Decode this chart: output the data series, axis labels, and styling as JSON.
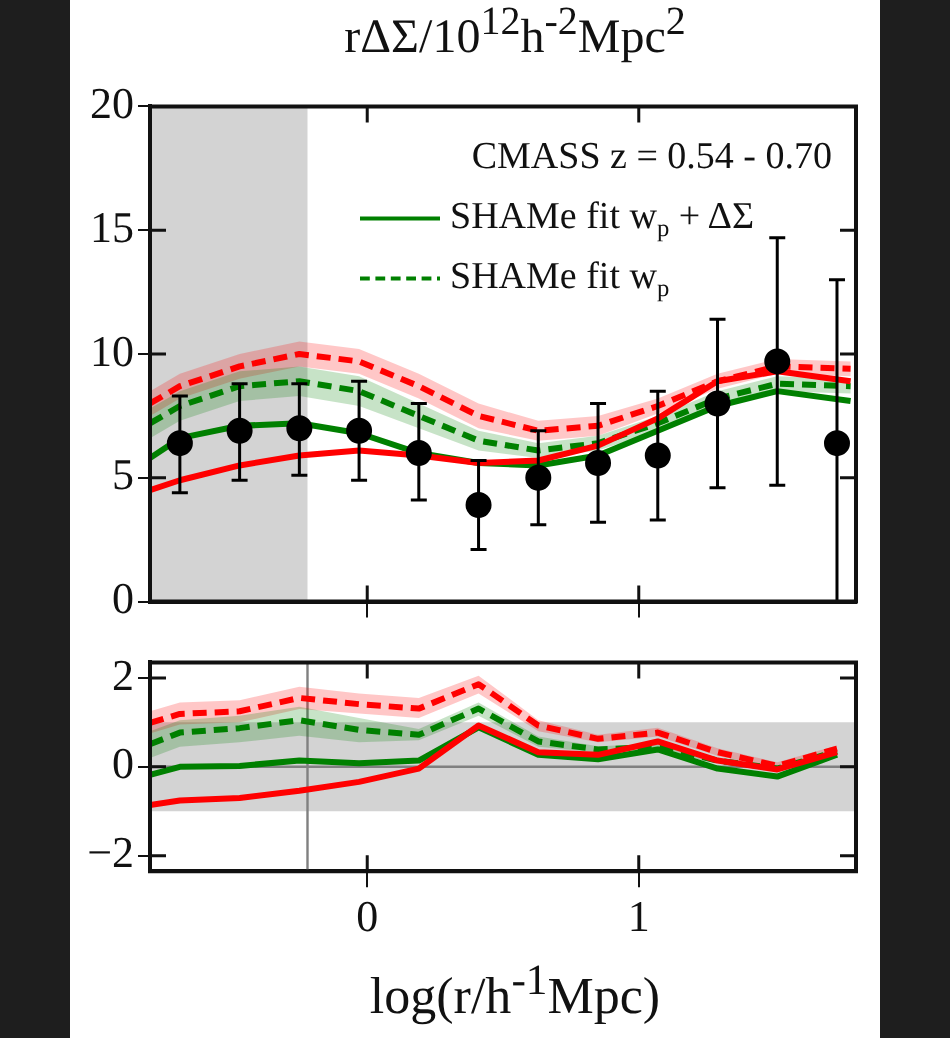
{
  "chart_data": [
    {
      "type": "line",
      "title": "rΔΣ/10$^{12}$h$^{-2}$Mpc$^{2}$",
      "legend_title": "CMASS z = 0.54 - 0.70",
      "legend": "top right",
      "tick_labels": "y",
      "x": [
        -0.8,
        -0.69,
        -0.47,
        -0.25,
        -0.03,
        0.19,
        0.41,
        0.63,
        0.85,
        1.07,
        1.29,
        1.51,
        1.78
      ],
      "xlim": [
        -0.8,
        1.8
      ],
      "xticks": [
        {
          "value": 0,
          "label": null
        },
        {
          "value": 1,
          "label": null
        }
      ],
      "ylim": [
        0,
        20
      ],
      "yticks": [
        0,
        5,
        10,
        15,
        20
      ],
      "bands": [
        {
          "axis": "x",
          "from": -0.8,
          "to": -0.22,
          "color": "#d3d3d3"
        }
      ],
      "series": [
        {
          "color": "#ff0000",
          "line_style": "solid",
          "values": [
            4.5,
            4.9,
            5.5,
            5.9,
            6.1,
            5.9,
            5.6,
            5.7,
            6.3,
            7.4,
            8.9,
            9.3,
            8.9
          ]
        },
        {
          "name": "SHAMe fit w$_{p}$ + ΔΣ",
          "color": "#008000",
          "line_style": "solid",
          "values": [
            5.8,
            6.6,
            7.1,
            7.2,
            6.8,
            6.0,
            5.6,
            5.5,
            5.9,
            6.9,
            7.9,
            8.5,
            8.1
          ]
        },
        {
          "color": "#ff0000",
          "line_style": "dashed",
          "values": [
            8.0,
            8.7,
            9.5,
            10.0,
            9.7,
            8.7,
            7.5,
            6.9,
            7.1,
            7.9,
            8.9,
            9.5,
            9.4
          ],
          "lower": [
            7.5,
            8.2,
            9.0,
            9.5,
            9.2,
            8.2,
            7.0,
            6.5,
            6.7,
            7.6,
            8.6,
            9.2,
            9.1
          ],
          "upper": [
            8.5,
            9.2,
            10.0,
            10.5,
            10.2,
            9.2,
            8.0,
            7.3,
            7.5,
            8.2,
            9.2,
            9.8,
            9.7
          ]
        },
        {
          "name": "SHAMe fit w$_{p}$",
          "color": "#008000",
          "line_style": "dashed",
          "values": [
            7.2,
            7.9,
            8.7,
            8.9,
            8.5,
            7.5,
            6.5,
            6.1,
            6.4,
            7.2,
            8.2,
            8.8,
            8.7
          ],
          "lower": [
            6.6,
            7.3,
            8.1,
            8.3,
            7.9,
            7.0,
            6.1,
            5.8,
            6.1,
            6.9,
            7.9,
            8.5,
            8.4
          ],
          "upper": [
            7.8,
            8.5,
            9.3,
            9.5,
            9.1,
            8.0,
            6.9,
            6.4,
            6.7,
            7.5,
            8.5,
            9.1,
            9.0
          ]
        },
        {
          "type": "scatter",
          "marker": "circle",
          "color": "#000000",
          "x": [
            -0.69,
            -0.47,
            -0.25,
            -0.03,
            0.19,
            0.41,
            0.63,
            0.85,
            1.07,
            1.29,
            1.51,
            1.73
          ],
          "values": [
            6.4,
            6.9,
            7.0,
            6.9,
            6.0,
            3.9,
            5.0,
            5.6,
            5.9,
            8.0,
            9.7,
            6.4
          ],
          "errors": [
            [
              4.4,
              8.3
            ],
            [
              4.9,
              8.8
            ],
            [
              5.1,
              8.8
            ],
            [
              4.9,
              8.9
            ],
            [
              4.1,
              8.0
            ],
            [
              2.1,
              5.7
            ],
            [
              3.1,
              6.9
            ],
            [
              3.2,
              8.0
            ],
            [
              3.3,
              8.5
            ],
            [
              4.6,
              11.4
            ],
            [
              4.7,
              14.7
            ],
            [
              0,
              13.0
            ]
          ]
        }
      ]
    },
    {
      "type": "line",
      "xlabel": "log(r/h$^{-1}$Mpc)",
      "x": [
        -0.8,
        -0.69,
        -0.47,
        -0.25,
        -0.03,
        0.19,
        0.41,
        0.63,
        0.85,
        1.07,
        1.29,
        1.51,
        1.73
      ],
      "xlim": [
        -0.8,
        1.8
      ],
      "xticks": [
        0,
        1
      ],
      "ylim": [
        -2.35,
        2.35
      ],
      "yticks": [
        {
          "value": -2,
          "label": "−2"
        },
        0,
        2
      ],
      "bands": [
        {
          "axis": "y",
          "from": -1,
          "to": 1,
          "color": "#d3d3d3"
        }
      ],
      "ref_lines": [
        {
          "axis": "y",
          "value": 0,
          "color": "#808080"
        },
        {
          "axis": "x",
          "value": -0.22,
          "color": "#808080"
        }
      ],
      "series": [
        {
          "color": "#ff0000",
          "line_style": "solid",
          "values": [
            -0.86,
            -0.76,
            -0.7,
            -0.54,
            -0.34,
            -0.04,
            0.93,
            0.33,
            0.27,
            0.57,
            0.14,
            -0.06,
            0.33
          ]
        },
        {
          "color": "#008000",
          "line_style": "solid",
          "values": [
            -0.18,
            0,
            0.02,
            0.14,
            0.08,
            0.14,
            0.89,
            0.27,
            0.17,
            0.39,
            -0.04,
            -0.22,
            0.27
          ]
        },
        {
          "color": "#ff0000",
          "line_style": "dashed",
          "values": [
            0.99,
            1.19,
            1.25,
            1.55,
            1.41,
            1.31,
            1.86,
            0.93,
            0.63,
            0.77,
            0.33,
            0.02,
            0.41
          ],
          "lower": [
            0.75,
            0.95,
            1.0,
            1.3,
            1.2,
            1.1,
            1.65,
            0.8,
            0.55,
            0.68,
            0.25,
            -0.04,
            0.34
          ],
          "upper": [
            1.25,
            1.45,
            1.5,
            1.8,
            1.65,
            1.55,
            2.05,
            1.05,
            0.72,
            0.88,
            0.42,
            0.1,
            0.48
          ]
        },
        {
          "color": "#008000",
          "line_style": "dashed",
          "values": [
            0.51,
            0.77,
            0.87,
            1.05,
            0.83,
            0.72,
            1.31,
            0.57,
            0.39,
            0.45,
            0.14,
            -0.04,
            0.35
          ],
          "lower": [
            0.2,
            0.45,
            0.55,
            0.7,
            0.55,
            0.6,
            1.15,
            0.45,
            0.32,
            0.38,
            0.08,
            -0.1,
            0.29
          ],
          "upper": [
            0.8,
            1.05,
            1.15,
            1.35,
            1.1,
            0.85,
            1.45,
            0.68,
            0.46,
            0.52,
            0.2,
            0.02,
            0.41
          ]
        }
      ]
    }
  ]
}
